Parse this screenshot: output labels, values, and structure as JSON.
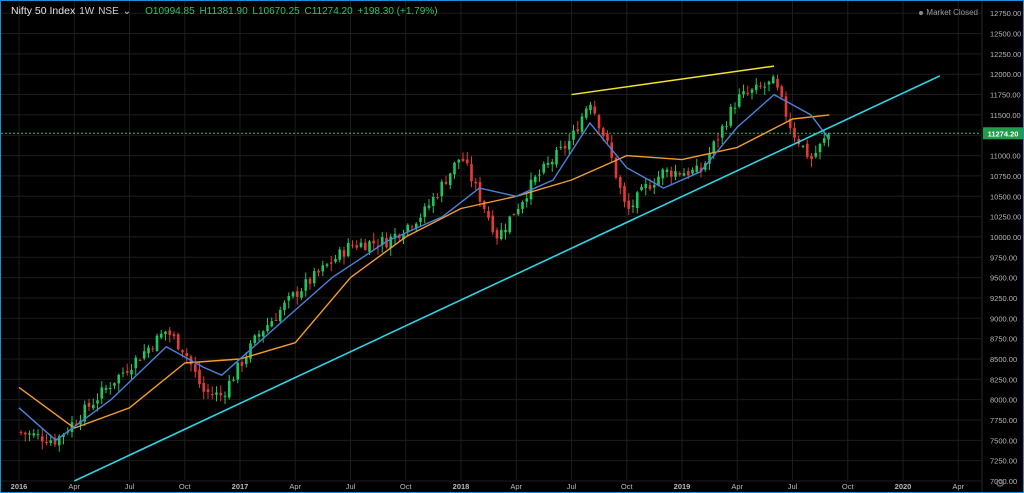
{
  "header": {
    "symbol_title": "Nifty 50 Index",
    "interval": "1W",
    "exchange": "NSE",
    "open": "O10994.85",
    "high": "H11381.90",
    "low": "L10670.25",
    "close": "C11274.20",
    "change": "+198.30 (+1.79%)"
  },
  "market_status": "Market Closed",
  "price_tag": "11274.20",
  "icons": {
    "chevron": "chevron-down-icon",
    "settings": "gear-icon",
    "status": "status-dot-icon"
  },
  "colors": {
    "background": "#000000",
    "up": "#21c55d",
    "down": "#e53935",
    "ma_fast": "#4a82d9",
    "ma_slow": "#f39c2d",
    "trendline": "#2ed3e6",
    "resistance": "#f2e52e",
    "price_line": "#2ec46a",
    "grid": "#1c1c1c"
  },
  "chart_data": {
    "type": "line",
    "y_ticks": [
      "12750.00",
      "12500.00",
      "12250.00",
      "12000.00",
      "11750.00",
      "11500.00",
      "11250.00",
      "11000.00",
      "10750.00",
      "10500.00",
      "10250.00",
      "10000.00",
      "9750.00",
      "9500.00",
      "9250.00",
      "9000.00",
      "8750.00",
      "8500.00",
      "8250.00",
      "8000.00",
      "7750.00",
      "7500.00",
      "7250.00",
      "7000.00"
    ],
    "x_ticks": [
      "2016",
      "Apr",
      "Jul",
      "Oct",
      "2017",
      "Apr",
      "Jul",
      "Oct",
      "2018",
      "Apr",
      "Jul",
      "Oct",
      "2019",
      "Apr",
      "Jul",
      "Oct",
      "2020",
      "Apr"
    ],
    "ylim": [
      7000,
      12900
    ],
    "series": [
      {
        "key": "close",
        "x": [
          "2016-01",
          "2016-03",
          "2016-06",
          "2016-09",
          "2016-10",
          "2016-11",
          "2016-12",
          "2017-02",
          "2017-04",
          "2017-07",
          "2017-09",
          "2017-11",
          "2018-01",
          "2018-02",
          "2018-03",
          "2018-05",
          "2018-07",
          "2018-08",
          "2018-09",
          "2018-10",
          "2018-11",
          "2018-12",
          "2019-02",
          "2019-04",
          "2019-06",
          "2019-07",
          "2019-08",
          "2019-09"
        ],
        "values": [
          7600,
          7500,
          8200,
          8850,
          8600,
          8100,
          8050,
          8800,
          9300,
          9900,
          9950,
          10300,
          11000,
          10500,
          10000,
          10700,
          11200,
          11700,
          11100,
          10300,
          10600,
          10800,
          10800,
          11700,
          11900,
          11300,
          10950,
          11274
        ]
      },
      {
        "key": "ma_fast",
        "x": [
          "2016-01",
          "2016-03",
          "2016-06",
          "2016-09",
          "2016-11",
          "2016-12",
          "2017-03",
          "2017-06",
          "2017-09",
          "2017-12",
          "2018-02",
          "2018-04",
          "2018-06",
          "2018-08",
          "2018-10",
          "2018-12",
          "2019-02",
          "2019-04",
          "2019-06",
          "2019-08",
          "2019-09"
        ],
        "values": [
          7900,
          7500,
          8000,
          8650,
          8400,
          8300,
          8900,
          9500,
          9950,
          10250,
          10600,
          10500,
          10700,
          11400,
          10850,
          10600,
          10800,
          11350,
          11750,
          11500,
          11200
        ]
      },
      {
        "key": "ma_slow",
        "x": [
          "2016-01",
          "2016-04",
          "2016-07",
          "2016-10",
          "2017-01",
          "2017-04",
          "2017-07",
          "2017-10",
          "2018-01",
          "2018-04",
          "2018-07",
          "2018-10",
          "2019-01",
          "2019-04",
          "2019-07",
          "2019-09"
        ],
        "values": [
          8150,
          7650,
          7900,
          8450,
          8500,
          8700,
          9500,
          10000,
          10350,
          10500,
          10700,
          11000,
          10950,
          11100,
          11450,
          11500
        ]
      }
    ],
    "grid": true,
    "annotations": [
      {
        "type": "trendline",
        "from": [
          "2016-04",
          7000
        ],
        "to": [
          "2020-03",
          11980
        ]
      },
      {
        "type": "trendline",
        "from": [
          "2018-07",
          11750
        ],
        "to": [
          "2019-06",
          12100
        ]
      },
      {
        "type": "horizontal_line",
        "value": 11274.2
      }
    ]
  }
}
